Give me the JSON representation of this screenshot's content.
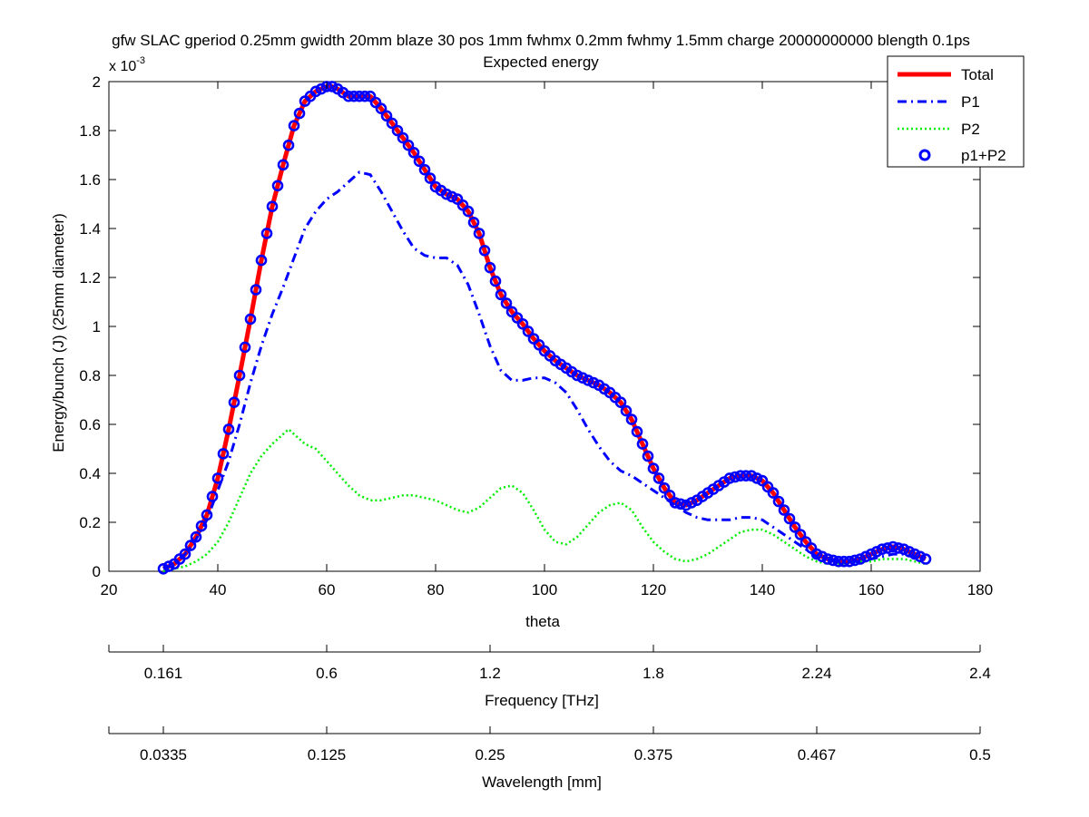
{
  "chart_data": {
    "type": "line",
    "title": "gfw SLAC gperiod 0.25mm gwidth 20mm blaze 30 pos 1mm fwhmx 0.2mm fwhmy 1.5mm charge 20000000000 blength 0.1ps",
    "subtitle": "Expected energy",
    "xlabel": "theta",
    "ylabel": "Energy/bunch (J) (25mm diameter)",
    "y_exponent_label": "x 10",
    "y_exponent_power": "-3",
    "xlim": [
      20,
      180
    ],
    "ylim": [
      0,
      2
    ],
    "x_ticks": [
      20,
      40,
      60,
      80,
      100,
      120,
      140,
      160,
      180
    ],
    "y_ticks": [
      0,
      0.2,
      0.4,
      0.6,
      0.8,
      1,
      1.2,
      1.4,
      1.6,
      1.8,
      2
    ],
    "y_tick_labels": [
      "0",
      "0.2",
      "0.4",
      "0.6",
      "0.8",
      "1",
      "1.2",
      "1.4",
      "1.6",
      "1.8",
      "2"
    ],
    "grid": false,
    "legend_position": "top-right",
    "series": [
      {
        "name": "Total",
        "style": "solid",
        "color": "#ff0000",
        "x": [
          30,
          32,
          34,
          36,
          38,
          40,
          42,
          44,
          46,
          48,
          50,
          52,
          54,
          56,
          58,
          60,
          61,
          62,
          64,
          66,
          68,
          70,
          72,
          74,
          76,
          78,
          80,
          82,
          84,
          86,
          88,
          90,
          92,
          94,
          96,
          98,
          100,
          102,
          104,
          106,
          108,
          110,
          112,
          114,
          116,
          118,
          120,
          122,
          124,
          126,
          128,
          130,
          132,
          134,
          136,
          138,
          140,
          142,
          144,
          146,
          148,
          150,
          152,
          154,
          156,
          158,
          160,
          162,
          164,
          166,
          168,
          170
        ],
        "y": [
          0.01,
          0.03,
          0.07,
          0.14,
          0.23,
          0.38,
          0.58,
          0.8,
          1.03,
          1.27,
          1.49,
          1.66,
          1.82,
          1.92,
          1.96,
          1.98,
          1.98,
          1.97,
          1.94,
          1.94,
          1.94,
          1.89,
          1.83,
          1.77,
          1.71,
          1.64,
          1.57,
          1.54,
          1.52,
          1.47,
          1.38,
          1.24,
          1.13,
          1.06,
          1.01,
          0.95,
          0.9,
          0.86,
          0.83,
          0.8,
          0.78,
          0.76,
          0.73,
          0.69,
          0.62,
          0.52,
          0.42,
          0.34,
          0.28,
          0.27,
          0.29,
          0.32,
          0.35,
          0.38,
          0.39,
          0.39,
          0.37,
          0.32,
          0.25,
          0.18,
          0.12,
          0.07,
          0.05,
          0.04,
          0.04,
          0.05,
          0.07,
          0.09,
          0.1,
          0.09,
          0.07,
          0.05
        ]
      },
      {
        "name": "P1",
        "style": "dashdot",
        "color": "#0000ff",
        "x": [
          30,
          32,
          34,
          36,
          38,
          40,
          42,
          44,
          46,
          48,
          50,
          52,
          54,
          56,
          58,
          60,
          62,
          64,
          66,
          68,
          70,
          72,
          74,
          76,
          78,
          80,
          82,
          84,
          86,
          88,
          90,
          92,
          94,
          96,
          98,
          100,
          102,
          104,
          106,
          108,
          110,
          112,
          114,
          116,
          118,
          120,
          122,
          124,
          126,
          128,
          130,
          132,
          134,
          136,
          138,
          140,
          142,
          144,
          146,
          148,
          150,
          152,
          154,
          156,
          158,
          160,
          162,
          164,
          166,
          168,
          170
        ],
        "y": [
          0.01,
          0.03,
          0.07,
          0.13,
          0.21,
          0.33,
          0.45,
          0.6,
          0.77,
          0.92,
          1.05,
          1.16,
          1.28,
          1.4,
          1.47,
          1.52,
          1.55,
          1.59,
          1.63,
          1.62,
          1.55,
          1.47,
          1.39,
          1.32,
          1.29,
          1.28,
          1.28,
          1.25,
          1.17,
          1.05,
          0.92,
          0.82,
          0.78,
          0.78,
          0.79,
          0.79,
          0.77,
          0.73,
          0.66,
          0.58,
          0.51,
          0.45,
          0.41,
          0.39,
          0.36,
          0.33,
          0.3,
          0.27,
          0.24,
          0.22,
          0.21,
          0.21,
          0.21,
          0.22,
          0.22,
          0.21,
          0.18,
          0.15,
          0.12,
          0.09,
          0.06,
          0.05,
          0.04,
          0.04,
          0.04,
          0.05,
          0.06,
          0.07,
          0.07,
          0.06,
          0.05
        ]
      },
      {
        "name": "P2",
        "style": "dotted",
        "color": "#00ee00",
        "x": [
          30,
          32,
          34,
          36,
          38,
          40,
          42,
          44,
          46,
          48,
          50,
          52,
          53,
          54,
          56,
          58,
          60,
          62,
          64,
          66,
          68,
          70,
          72,
          74,
          76,
          78,
          80,
          82,
          84,
          86,
          88,
          90,
          92,
          94,
          96,
          98,
          100,
          102,
          104,
          106,
          108,
          110,
          112,
          114,
          116,
          118,
          120,
          122,
          124,
          126,
          128,
          130,
          132,
          134,
          136,
          138,
          140,
          142,
          144,
          146,
          148,
          150,
          152,
          154,
          156,
          158,
          160,
          162,
          164,
          166,
          168,
          170
        ],
        "y": [
          0.0,
          0.01,
          0.02,
          0.04,
          0.07,
          0.12,
          0.2,
          0.3,
          0.4,
          0.47,
          0.52,
          0.56,
          0.58,
          0.56,
          0.52,
          0.5,
          0.45,
          0.4,
          0.35,
          0.31,
          0.29,
          0.29,
          0.3,
          0.31,
          0.31,
          0.3,
          0.29,
          0.27,
          0.25,
          0.24,
          0.26,
          0.3,
          0.34,
          0.35,
          0.32,
          0.25,
          0.17,
          0.12,
          0.11,
          0.14,
          0.19,
          0.24,
          0.27,
          0.28,
          0.25,
          0.18,
          0.12,
          0.08,
          0.05,
          0.04,
          0.05,
          0.07,
          0.1,
          0.13,
          0.16,
          0.17,
          0.17,
          0.15,
          0.12,
          0.09,
          0.06,
          0.04,
          0.03,
          0.03,
          0.03,
          0.04,
          0.04,
          0.05,
          0.05,
          0.05,
          0.04,
          0.03
        ]
      },
      {
        "name": "p1+P2",
        "style": "markers",
        "marker": "circle",
        "color": "#0000ff",
        "source_series": "Total",
        "x_step": 1
      }
    ],
    "secondary_axes": [
      {
        "label": "Frequency [THz]",
        "tick_theta": [
          30,
          60,
          90,
          120,
          150,
          180
        ],
        "tick_labels": [
          "0.161",
          "0.6",
          "1.2",
          "1.8",
          "2.24",
          "2.4"
        ]
      },
      {
        "label": "Wavelength [mm]",
        "tick_theta": [
          30,
          60,
          90,
          120,
          150,
          180
        ],
        "tick_labels": [
          "0.0335",
          "0.125",
          "0.25",
          "0.375",
          "0.467",
          "0.5"
        ]
      }
    ]
  }
}
